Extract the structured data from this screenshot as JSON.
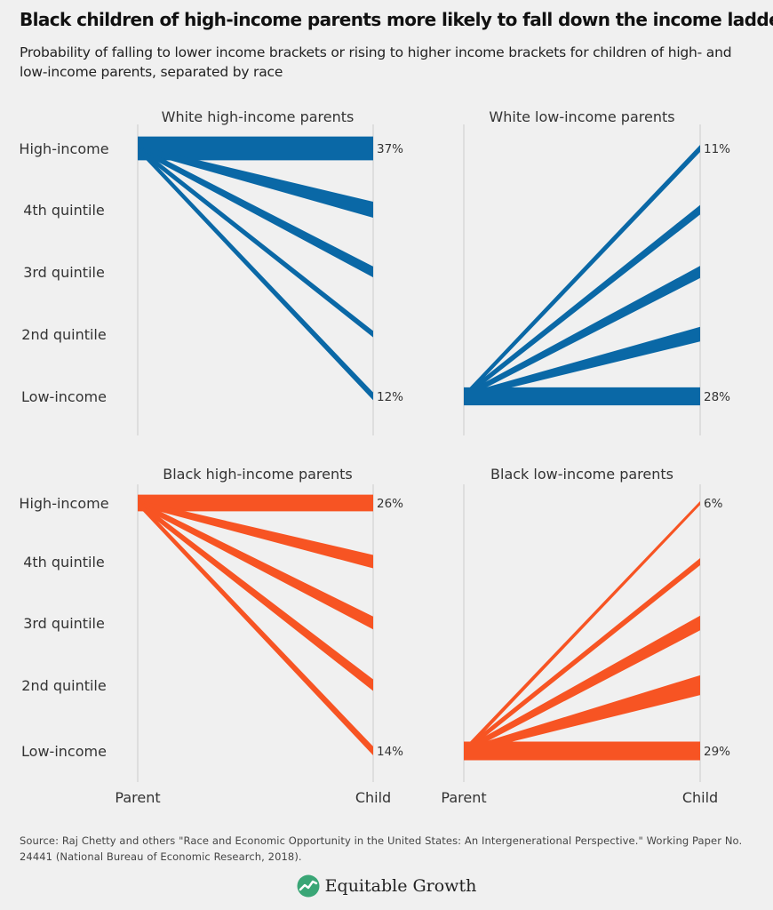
{
  "title": "Black children of high-income parents more likely to fall down the income ladder",
  "subtitle": "Probability of falling to lower income brackets or rising to higher income brackets for children of high- and low-income parents, separated by race",
  "source": "Source: Raj Chetty and others \"Race and Economic Opportunity in the United States: An Intergenerational Perspective.\" Working Paper No. 24441 (National Bureau of Economic Research, 2018).",
  "brand": {
    "name": "Equitable Growth",
    "icon": "growth-logo-icon"
  },
  "colors": {
    "white": "#0a68a6",
    "black": "#f75423",
    "axis": "#cccccc"
  },
  "chart_data": [
    {
      "type": "slope",
      "title": "White high-income parents",
      "parent_bracket": "High-income",
      "categories": [
        "High-income",
        "4th quintile",
        "3rd quintile",
        "2nd quintile",
        "Low-income"
      ],
      "values": [
        37,
        25,
        17,
        10,
        12
      ],
      "data_labels": {
        "High-income": "37%",
        "Low-income": "12%"
      },
      "xticks": [
        "Parent",
        "Child"
      ],
      "color": "#0a68a6"
    },
    {
      "type": "slope",
      "title": "White low-income parents",
      "parent_bracket": "Low-income",
      "categories": [
        "High-income",
        "4th quintile",
        "3rd quintile",
        "2nd quintile",
        "Low-income"
      ],
      "values": [
        11,
        15,
        19,
        23,
        28
      ],
      "data_labels": {
        "High-income": "11%",
        "Low-income": "28%"
      },
      "xticks": [
        "Parent",
        "Child"
      ],
      "color": "#0a68a6"
    },
    {
      "type": "slope",
      "title": "Black high-income parents",
      "parent_bracket": "High-income",
      "categories": [
        "High-income",
        "4th quintile",
        "3rd quintile",
        "2nd quintile",
        "Low-income"
      ],
      "values": [
        26,
        21,
        20,
        18,
        14
      ],
      "data_labels": {
        "High-income": "26%",
        "Low-income": "14%"
      },
      "xticks": [
        "Parent",
        "Child"
      ],
      "color": "#f75423"
    },
    {
      "type": "slope",
      "title": "Black low-income parents",
      "parent_bracket": "Low-income",
      "categories": [
        "High-income",
        "4th quintile",
        "3rd quintile",
        "2nd quintile",
        "Low-income"
      ],
      "values": [
        6,
        11,
        23,
        31,
        29
      ],
      "data_labels": {
        "High-income": "6%",
        "Low-income": "29%"
      },
      "xticks": [
        "Parent",
        "Child"
      ],
      "color": "#f75423"
    }
  ]
}
